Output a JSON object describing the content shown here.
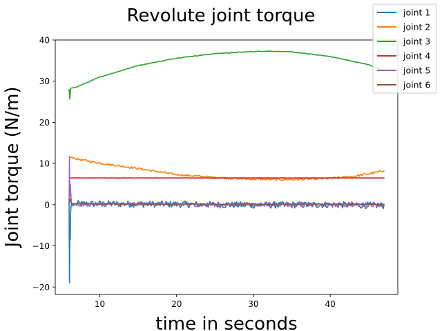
{
  "chart_data": {
    "type": "line",
    "title": "Revolute joint torque",
    "xlabel": "time in seconds",
    "ylabel": "Joint torque (N/m)",
    "xlim": [
      4.2,
      48.8
    ],
    "ylim": [
      -21.8,
      40.0
    ],
    "xticks": [
      10,
      20,
      30,
      40
    ],
    "yticks": [
      -20,
      -10,
      0,
      10,
      20,
      30,
      40
    ],
    "grid": false,
    "legend_position": "top-right",
    "series": [
      {
        "name": "joint 1",
        "color": "#1f77b4",
        "noise": 0.8,
        "x": [
          6.0,
          6.05,
          6.1,
          6.15,
          6.2,
          6.3,
          6.5,
          7,
          10,
          20,
          30,
          40,
          47
        ],
        "y": [
          0.5,
          -19.0,
          -5.0,
          -8.5,
          -2.0,
          0.5,
          -0.3,
          0.2,
          0.2,
          0.1,
          -0.1,
          0.0,
          -0.2
        ]
      },
      {
        "name": "joint 2",
        "color": "#ff7f0e",
        "noise": 0.25,
        "x": [
          6.0,
          6.2,
          7,
          10,
          15,
          20,
          25,
          30,
          35,
          40,
          43,
          45,
          47
        ],
        "y": [
          11.8,
          11.5,
          11.1,
          10.1,
          8.8,
          7.3,
          6.6,
          6.2,
          6.1,
          6.4,
          6.9,
          7.5,
          8.2
        ]
      },
      {
        "name": "joint 3",
        "color": "#2ca02c",
        "noise": 0.08,
        "x": [
          6.0,
          6.1,
          6.2,
          7,
          8,
          10,
          15,
          20,
          25,
          30,
          32,
          35,
          40,
          45,
          47
        ],
        "y": [
          28.0,
          25.6,
          28.3,
          28.6,
          29.4,
          31.0,
          33.8,
          35.6,
          36.7,
          37.2,
          37.3,
          37.1,
          36.0,
          34.0,
          32.6
        ]
      },
      {
        "name": "joint 4",
        "color": "#d62728",
        "noise": 0.03,
        "x": [
          6.0,
          10,
          20,
          30,
          40,
          47
        ],
        "y": [
          6.5,
          6.5,
          6.5,
          6.5,
          6.5,
          6.5
        ]
      },
      {
        "name": "joint 5",
        "color": "#9467bd",
        "noise": 0.5,
        "x": [
          6.0,
          6.05,
          6.1,
          6.15,
          6.3,
          6.6,
          10,
          17,
          23,
          30,
          40,
          47
        ],
        "y": [
          0.5,
          11.5,
          2.0,
          5.0,
          0.5,
          0.0,
          0.1,
          0.2,
          0.0,
          0.1,
          0.0,
          0.0
        ]
      },
      {
        "name": "joint 6",
        "color": "#8c564b",
        "noise": 0.15,
        "x": [
          6.0,
          6.1,
          6.3,
          10,
          20,
          30,
          40,
          47
        ],
        "y": [
          0.4,
          1.5,
          0.3,
          0.2,
          0.1,
          0.1,
          0.1,
          0.1
        ]
      }
    ]
  }
}
